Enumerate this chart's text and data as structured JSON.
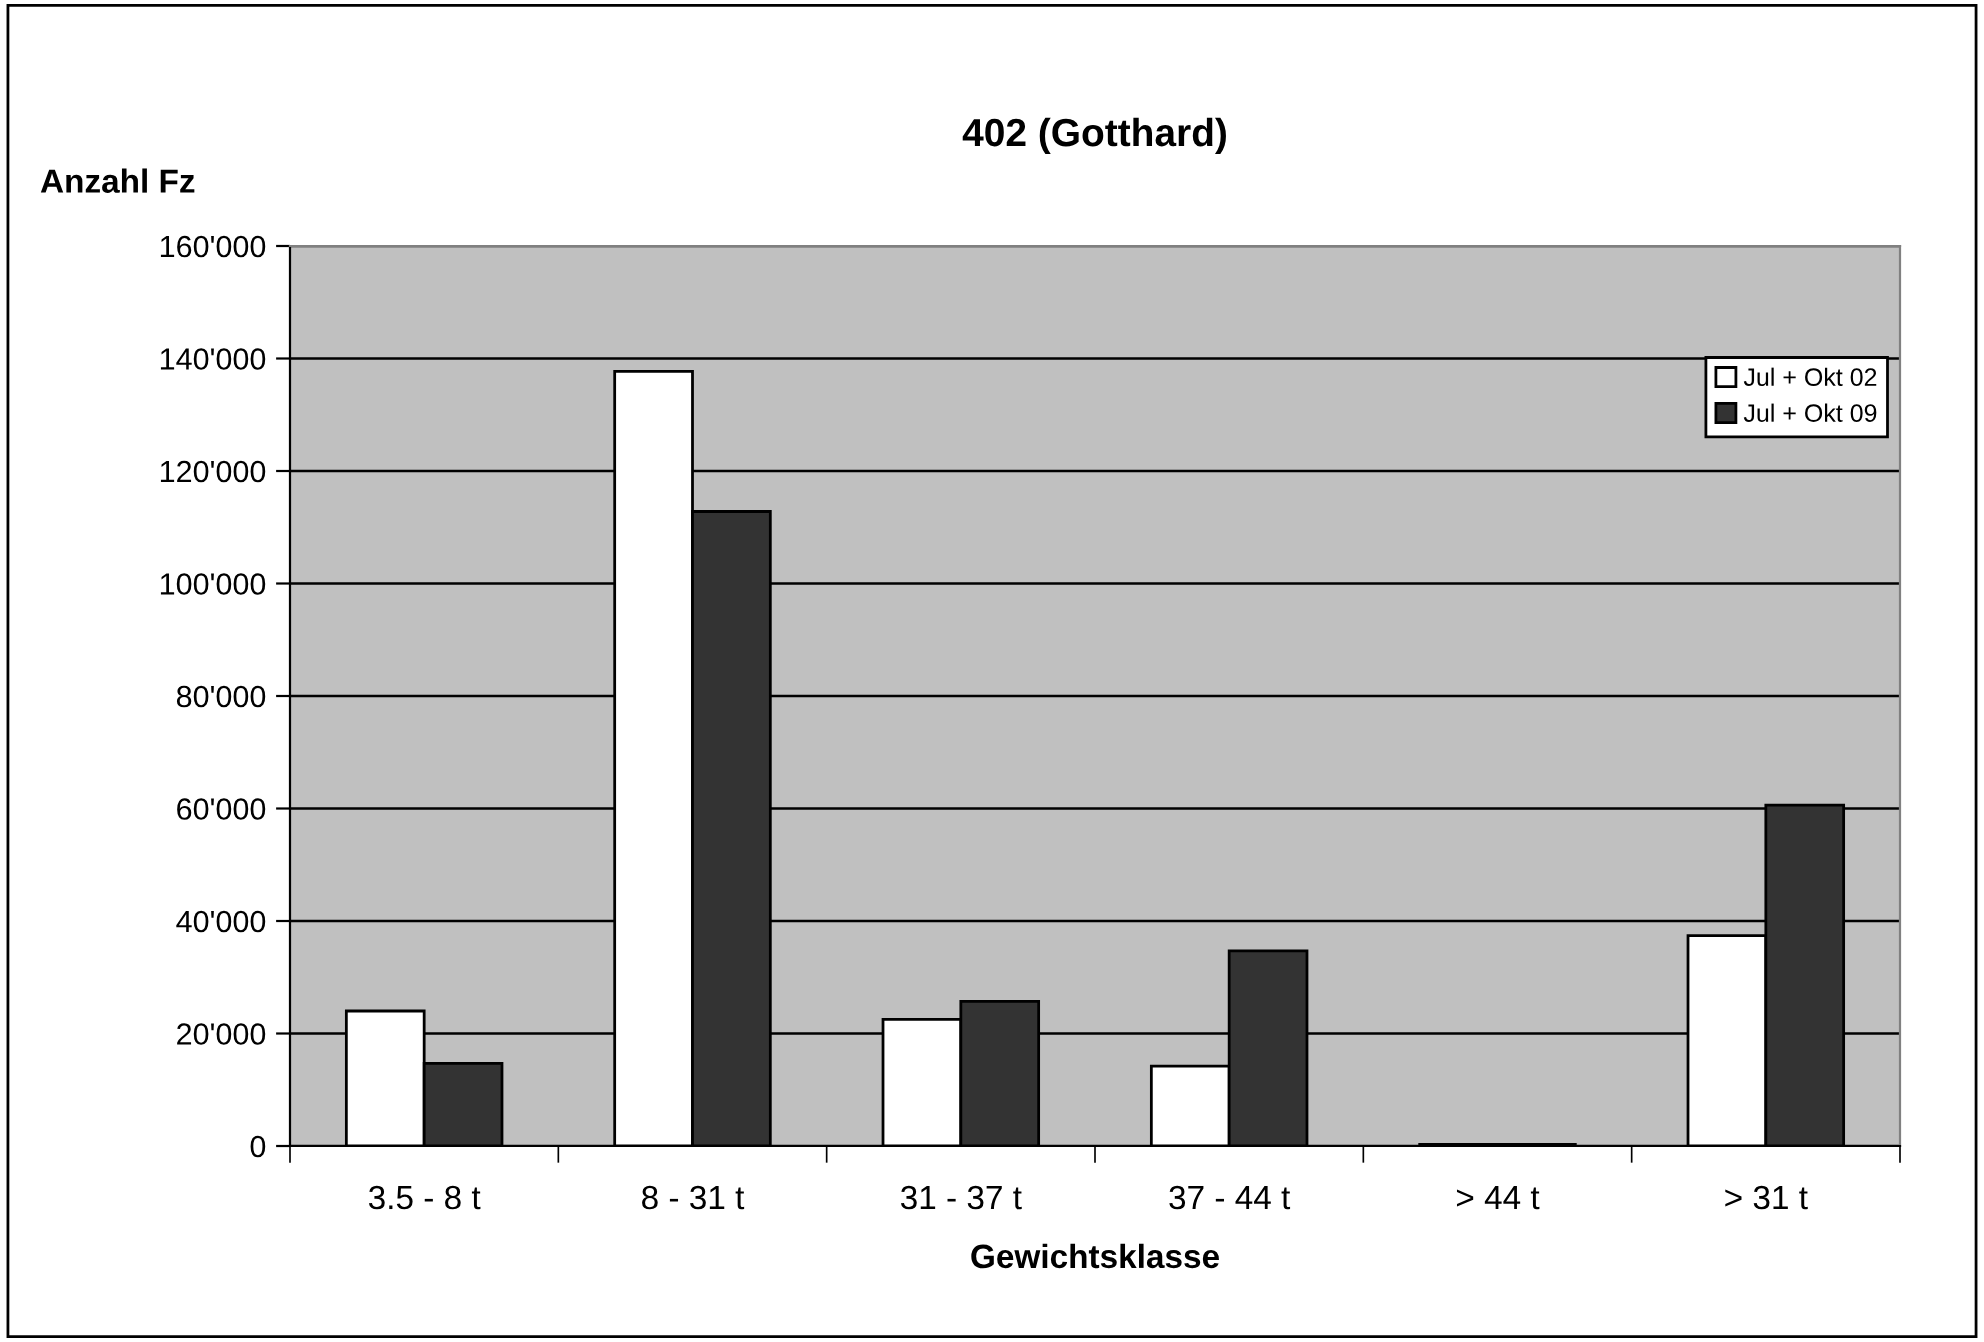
{
  "chart_data": {
    "type": "bar",
    "title": "402 (Gotthard)",
    "ylabel": "Anzahl Fz",
    "xlabel": "Gewichtsklasse",
    "categories": [
      "3.5 - 8 t",
      "8 - 31 t",
      "31 - 37 t",
      "37 - 44 t",
      "> 44 t",
      "> 31 t"
    ],
    "series": [
      {
        "name": "Jul + Okt 02",
        "color": "#ffffff",
        "values": [
          24000,
          137700,
          22500,
          14200,
          300,
          37400
        ]
      },
      {
        "name": "Jul + Okt 09",
        "color": "#333333",
        "values": [
          14700,
          112800,
          25700,
          34700,
          300,
          60600
        ]
      }
    ],
    "ylim": [
      0,
      160000
    ],
    "yticks": [
      0,
      {
        "value": 20000,
        "label": "20'000"
      },
      {
        "value": 40000,
        "label": "40'000"
      },
      {
        "value": 60000,
        "label": "60'000"
      },
      {
        "value": 80000,
        "label": "80'000"
      },
      {
        "value": 100000,
        "label": "100'000"
      },
      {
        "value": 120000,
        "label": "120'000"
      },
      {
        "value": 140000,
        "label": "140'000"
      },
      {
        "value": 160000,
        "label": "160'000"
      }
    ],
    "grid": "y",
    "legend": "right"
  }
}
